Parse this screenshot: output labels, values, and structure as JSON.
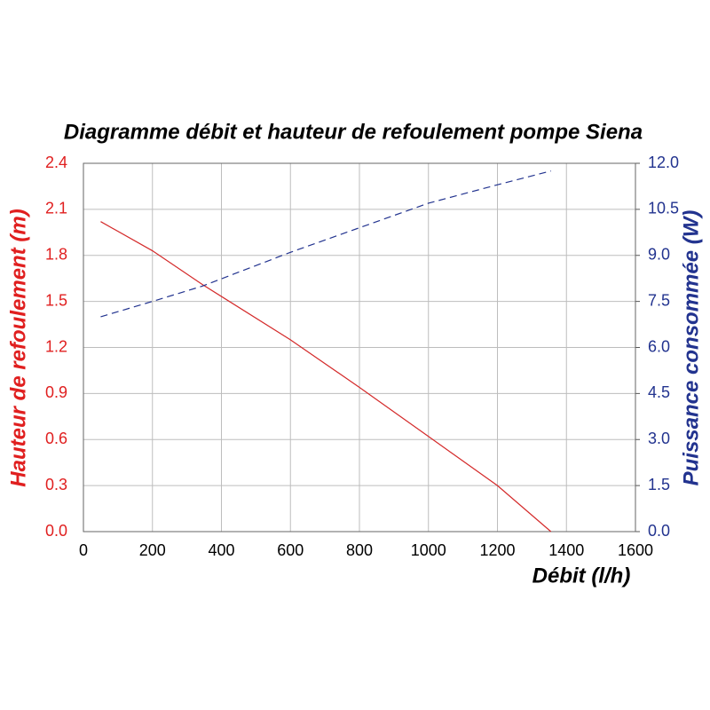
{
  "chart_data": {
    "type": "line",
    "title": "Diagramme débit et hauteur de refoulement pompe Siena",
    "x_label": "Débit (l/h)",
    "y_label": "Hauteur de refoulement (m)",
    "y2_label": "Puissance consommée (W)",
    "x": [
      50,
      200,
      345,
      600,
      800,
      1000,
      1200,
      1355
    ],
    "series": [
      {
        "name": "Hauteur de refoulement (m)",
        "color": "#d42a2a",
        "dash": false,
        "values": [
          2.02,
          1.83,
          1.61,
          1.25,
          0.94,
          0.62,
          0.3,
          0
        ]
      },
      {
        "name": "Puissance consommée (W)",
        "color": "#22338f",
        "dash": true,
        "axis": "y2",
        "values": [
          7.0,
          7.5,
          8.0,
          9.1,
          9.9,
          10.7,
          11.3,
          11.75
        ]
      }
    ],
    "xlim": [
      0,
      1600
    ],
    "xticks": [
      0,
      200,
      400,
      600,
      800,
      1000,
      1200,
      1400,
      1600
    ],
    "ylim": [
      0,
      2.4
    ],
    "yticks": [
      {
        "value": 0,
        "label": "0.0"
      },
      {
        "value": 0.3,
        "label": "0.3"
      },
      {
        "value": 0.6,
        "label": "0.6"
      },
      {
        "value": 0.9,
        "label": "0.9"
      },
      {
        "value": 1.2,
        "label": "1.2"
      },
      {
        "value": 1.5,
        "label": "1.5"
      },
      {
        "value": 1.8,
        "label": "1.8"
      },
      {
        "value": 2.1,
        "label": "2.1"
      },
      {
        "value": 2.4,
        "label": "2.4"
      }
    ],
    "y2lim": [
      0,
      12
    ],
    "y2ticks": [
      {
        "value": 0,
        "label": "0.0"
      },
      {
        "value": 1.5,
        "label": "1.5"
      },
      {
        "value": 3,
        "label": "3.0"
      },
      {
        "value": 4.5,
        "label": "4.5"
      },
      {
        "value": 6,
        "label": "6.0"
      },
      {
        "value": 7.5,
        "label": "7.5"
      },
      {
        "value": 9,
        "label": "9.0"
      },
      {
        "value": 10.5,
        "label": "10.5"
      },
      {
        "value": 12,
        "label": "12.0"
      }
    ],
    "grid": true
  }
}
